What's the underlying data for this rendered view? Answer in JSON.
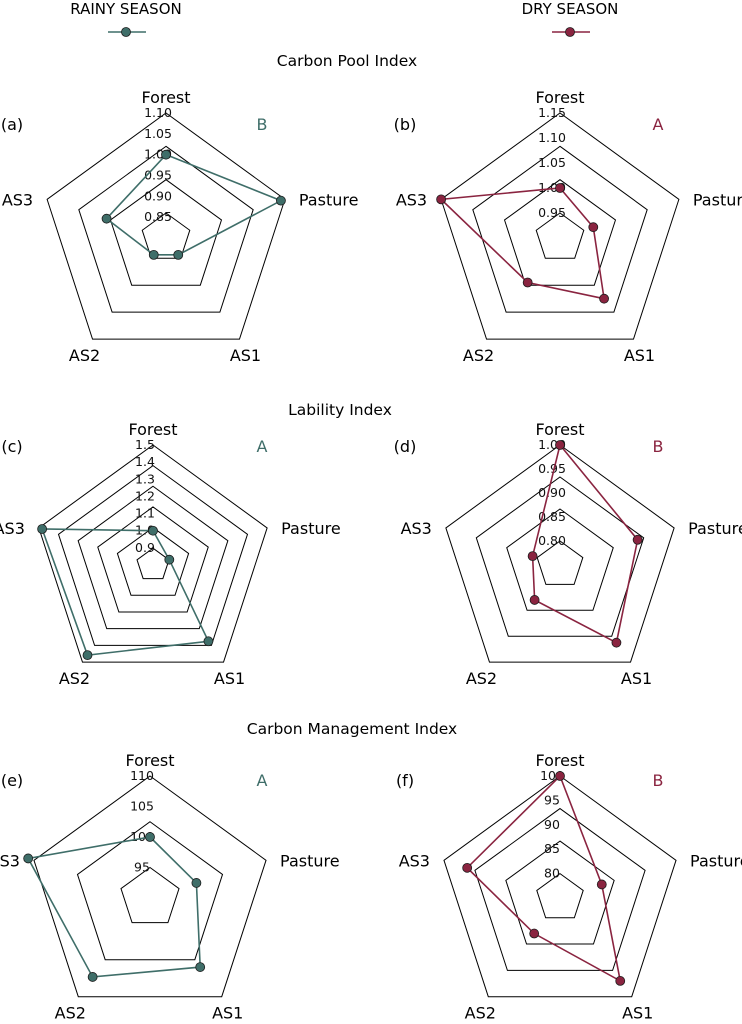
{
  "legend": {
    "rainy": {
      "label": "RAINY SEASON",
      "color": "#3f6e69"
    },
    "dry": {
      "label": "DRY SEASON",
      "color": "#8a2440"
    }
  },
  "sections": [
    {
      "title": "Carbon Pool Index"
    },
    {
      "title": "Lability Index"
    },
    {
      "title": "Carbon Management Index"
    }
  ],
  "chart_data": [
    {
      "type": "radar",
      "panel": "(a)",
      "letter": "B",
      "season": "rainy",
      "axes": [
        "Forest",
        "Pasture",
        "AS1",
        "AS2",
        "AS3"
      ],
      "rlim": [
        0.8,
        1.1
      ],
      "ticks": [
        "0.85",
        "0.90",
        "0.95",
        "1.00",
        "1.05",
        "1.10"
      ],
      "series": [
        {
          "name": "RAINY SEASON",
          "values": [
            1.0,
            1.09,
            0.85,
            0.85,
            0.95
          ]
        }
      ]
    },
    {
      "type": "radar",
      "panel": "(b)",
      "letter": "A",
      "season": "dry",
      "axes": [
        "Forest",
        "Pasture",
        "AS1",
        "AS2",
        "AS3"
      ],
      "rlim": [
        0.9,
        1.15
      ],
      "ticks": [
        "0.95",
        "1.00",
        "1.05",
        "1.10",
        "1.15"
      ],
      "series": [
        {
          "name": "DRY SEASON",
          "values": [
            1.0,
            0.97,
            1.05,
            1.01,
            1.15
          ]
        }
      ]
    },
    {
      "type": "radar",
      "panel": "(c)",
      "letter": "A",
      "season": "rainy",
      "axes": [
        "Forest",
        "Pasture",
        "AS1",
        "AS2",
        "AS3"
      ],
      "rlim": [
        0.8,
        1.5
      ],
      "ticks": [
        "0.9",
        "1.0",
        "1.1",
        "1.2",
        "1.3",
        "1.4",
        "1.5"
      ],
      "series": [
        {
          "name": "RAINY SEASON",
          "values": [
            1.0,
            0.9,
            1.35,
            1.45,
            1.48
          ]
        }
      ]
    },
    {
      "type": "radar",
      "panel": "(d)",
      "letter": "B",
      "season": "dry",
      "axes": [
        "Forest",
        "Pasture",
        "AS1",
        "AS2",
        "AS3"
      ],
      "rlim": [
        0.75,
        1.0
      ],
      "ticks": [
        "0.80",
        "0.85",
        "0.90",
        "0.95",
        "1.00"
      ],
      "series": [
        {
          "name": "DRY SEASON",
          "values": [
            1.0,
            0.92,
            0.95,
            0.84,
            0.81
          ]
        }
      ]
    },
    {
      "type": "radar",
      "panel": "(e)",
      "letter": "A",
      "season": "rainy",
      "axes": [
        "Forest",
        "Pasture",
        "AS1",
        "AS2",
        "AS3"
      ],
      "rlim": [
        90,
        110
      ],
      "ticks": [
        "95",
        "100",
        "105",
        "110"
      ],
      "series": [
        {
          "name": "RAINY SEASON",
          "values": [
            100,
            98,
            104,
            106,
            111
          ]
        }
      ]
    },
    {
      "type": "radar",
      "panel": "(f)",
      "letter": "B",
      "season": "dry",
      "axes": [
        "Forest",
        "Pasture",
        "AS1",
        "AS2",
        "AS3"
      ],
      "rlim": [
        75,
        100
      ],
      "ticks": [
        "80",
        "85",
        "90",
        "95",
        "100"
      ],
      "series": [
        {
          "name": "DRY SEASON",
          "values": [
            100,
            84,
            96,
            84,
            95
          ]
        }
      ]
    }
  ]
}
